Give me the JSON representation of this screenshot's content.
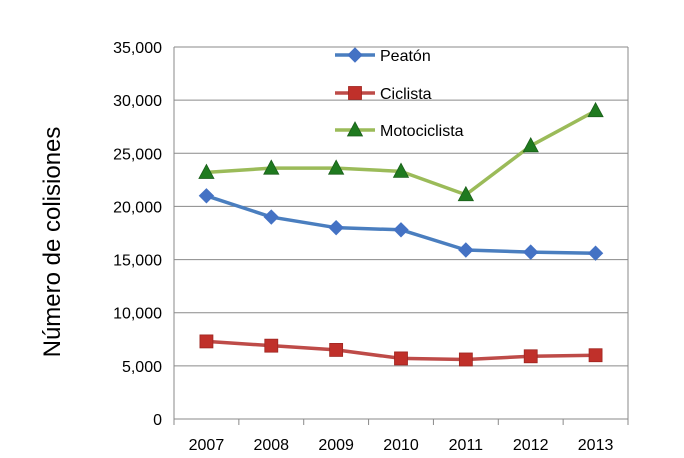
{
  "chart_data": {
    "type": "line",
    "title": "",
    "xlabel": "",
    "ylabel": "Número de colisiones",
    "categories": [
      "2007",
      "2008",
      "2009",
      "2010",
      "2011",
      "2012",
      "2013"
    ],
    "ylim": [
      0,
      35000
    ],
    "y_ticks": [
      "0",
      "5,000",
      "10,000",
      "15,000",
      "20,000",
      "25,000",
      "30,000",
      "35,000"
    ],
    "grid": true,
    "legend_position": "top",
    "series": [
      {
        "name": "Peatón",
        "color": "#4472C4",
        "marker": "diamond",
        "values": [
          21000,
          19000,
          18000,
          17800,
          15900,
          15700,
          15600
        ]
      },
      {
        "name": "Ciclista",
        "color": "#C0302A",
        "marker": "square",
        "values": [
          7300,
          6900,
          6500,
          5700,
          5600,
          5900,
          6000
        ]
      },
      {
        "name": "Motociclista",
        "color": "#9BBB59",
        "marker": "triangle",
        "values": [
          23200,
          23600,
          23600,
          23300,
          21100,
          25700,
          29000
        ]
      }
    ]
  }
}
